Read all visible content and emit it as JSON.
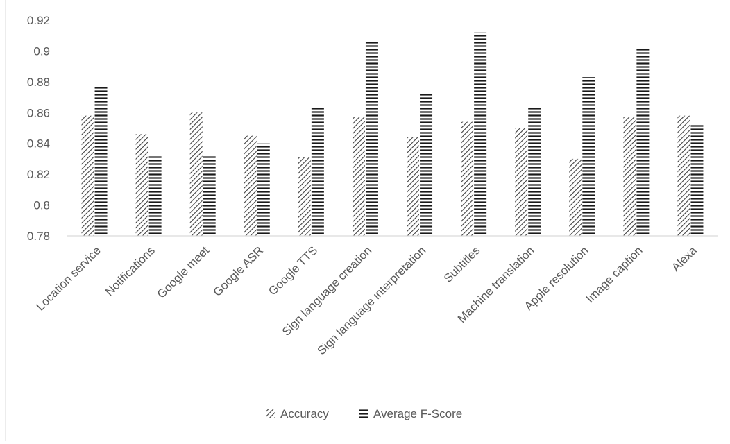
{
  "chart_data": {
    "type": "bar",
    "title": "",
    "xlabel": "",
    "ylabel": "",
    "ylim": [
      0.78,
      0.92
    ],
    "yticks": [
      "0.78",
      "0.8",
      "0.82",
      "0.84",
      "0.86",
      "0.88",
      "0.9",
      "0.92"
    ],
    "grid": false,
    "legend_position": "bottom",
    "categories": [
      "Location service",
      "Notifications",
      "Google meet",
      "Google ASR",
      "Google TTS",
      "Sign language creation",
      "Sign language interpretation",
      "Subtitles",
      "Machine translation",
      "Apple resolution",
      "Image caption",
      "Alexa"
    ],
    "series": [
      {
        "name": "Accuracy",
        "pattern": "diagonal-hatch",
        "color": "#404040",
        "values": [
          0.858,
          0.846,
          0.86,
          0.845,
          0.831,
          0.857,
          0.844,
          0.854,
          0.85,
          0.83,
          0.857,
          0.858
        ]
      },
      {
        "name": "Average F-Score",
        "pattern": "horizontal-lines",
        "color": "#404040",
        "values": [
          0.878,
          0.832,
          0.832,
          0.84,
          0.864,
          0.907,
          0.872,
          0.912,
          0.864,
          0.883,
          0.902,
          0.853
        ]
      }
    ]
  }
}
